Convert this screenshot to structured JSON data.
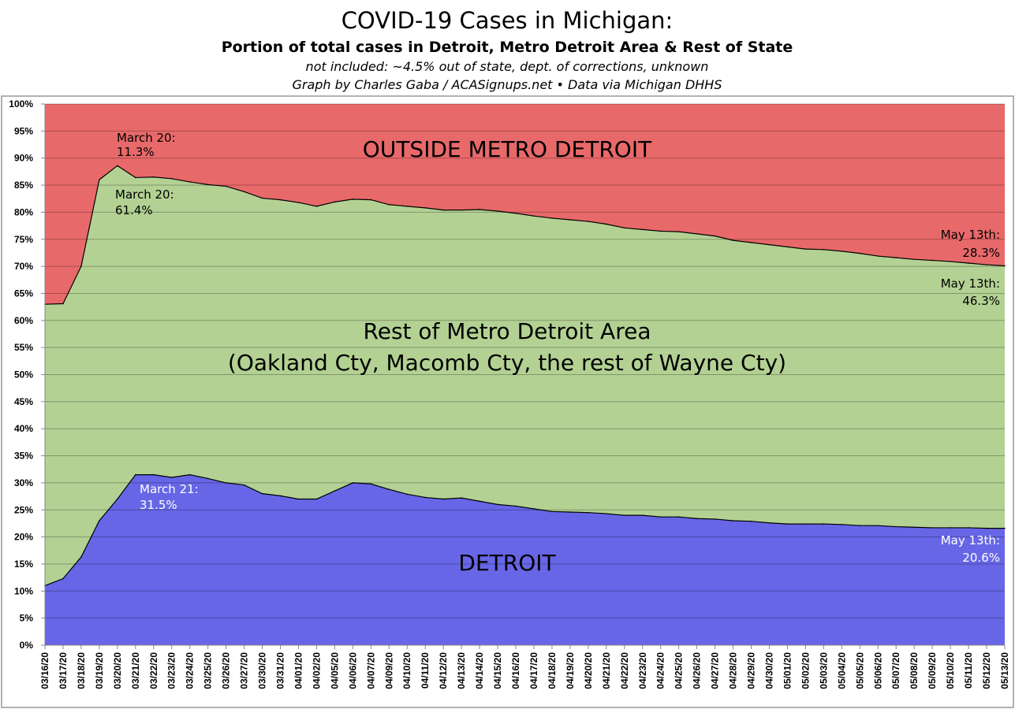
{
  "chart_data": {
    "type": "area",
    "stacked": true,
    "percent_stacked": true,
    "title": "COVID-19 Cases in Michigan:",
    "subtitle": "Portion of total cases in Detroit, Metro Detroit Area & Rest of State",
    "note": "not included: ~4.5% out of state, dept. of corrections, unknown",
    "credit": "Graph by Charles Gaba / ACASignups.net  •  Data via Michigan DHHS",
    "ylim": [
      0,
      100
    ],
    "y_ticks": [
      "0%",
      "5%",
      "10%",
      "15%",
      "20%",
      "25%",
      "30%",
      "35%",
      "40%",
      "45%",
      "50%",
      "55%",
      "60%",
      "65%",
      "70%",
      "75%",
      "80%",
      "85%",
      "90%",
      "95%",
      "100%"
    ],
    "grid": true,
    "categories": [
      "03/16/20",
      "03/17/20",
      "03/18/20",
      "03/19/20",
      "03/20/20",
      "03/21/20",
      "03/22/20",
      "03/23/20",
      "03/24/20",
      "03/25/20",
      "03/26/20",
      "03/27/20",
      "03/30/20",
      "03/31/20",
      "04/01/20",
      "04/02/20",
      "04/05/20",
      "04/06/20",
      "04/07/20",
      "04/09/20",
      "04/10/20",
      "04/11/20",
      "04/12/20",
      "04/13/20",
      "04/14/20",
      "04/15/20",
      "04/16/20",
      "04/17/20",
      "04/18/20",
      "04/19/20",
      "04/20/20",
      "04/21/20",
      "04/22/20",
      "04/23/20",
      "04/24/20",
      "04/25/20",
      "04/26/20",
      "04/27/20",
      "04/28/20",
      "04/29/20",
      "04/30/20",
      "05/01/20",
      "05/02/20",
      "05/03/20",
      "05/04/20",
      "05/05/20",
      "05/06/20",
      "05/07/20",
      "05/08/20",
      "05/09/20",
      "05/10/20",
      "05/11/20",
      "05/12/20",
      "05/13/20"
    ],
    "series": [
      {
        "name": "DETROIT",
        "color": "#6766E6",
        "values": [
          11,
          12.3,
          16.3,
          23,
          27,
          31.5,
          31.5,
          31,
          31.5,
          30.8,
          30,
          29.6,
          28,
          27.6,
          27,
          27,
          28.5,
          30,
          29.8,
          28.8,
          27.9,
          27.3,
          27,
          27.2,
          26.6,
          26,
          25.7,
          25.2,
          24.7,
          24.6,
          24.5,
          24.3,
          24,
          24,
          23.7,
          23.7,
          23.4,
          23.3,
          23,
          22.9,
          22.6,
          22.4,
          22.4,
          22.4,
          22.3,
          22.1,
          22.1,
          21.9,
          21.8,
          21.7,
          21.7,
          21.7,
          21.6,
          21.6
        ]
      },
      {
        "name": "Rest of Metro Detroit Area",
        "color": "#B3D193",
        "values": [
          52,
          50.8,
          53.7,
          63,
          61.6,
          54.9,
          55,
          55.2,
          54.1,
          54.3,
          54.8,
          54.2,
          54.6,
          54.7,
          54.8,
          54.1,
          53.4,
          52.4,
          52.5,
          52.6,
          53.2,
          53.5,
          53.4,
          53.2,
          53.9,
          54.2,
          54.1,
          54.1,
          54.2,
          54,
          53.8,
          53.5,
          53.1,
          52.8,
          52.8,
          52.7,
          52.6,
          52.3,
          51.8,
          51.5,
          51.4,
          51.2,
          50.8,
          50.7,
          50.5,
          50.3,
          49.8,
          49.7,
          49.5,
          49.4,
          49.2,
          48.9,
          48.7,
          48.5
        ]
      },
      {
        "name": "OUTSIDE METRO DETROIT",
        "color": "#E8696A",
        "values": [
          37,
          36.9,
          30,
          14,
          11.4,
          13.6,
          13.5,
          13.8,
          14.4,
          14.9,
          15.2,
          16.2,
          17.4,
          17.7,
          18.2,
          18.9,
          18.1,
          17.6,
          17.7,
          18.6,
          18.9,
          19.2,
          19.6,
          19.6,
          19.5,
          19.8,
          20.2,
          20.7,
          21.1,
          21.4,
          21.7,
          22.2,
          22.9,
          23.2,
          23.5,
          23.6,
          24,
          24.4,
          25.2,
          25.6,
          26,
          26.4,
          26.8,
          26.9,
          27.2,
          27.6,
          28.1,
          28.4,
          28.7,
          28.9,
          29.1,
          29.4,
          29.7,
          29.9
        ]
      }
    ],
    "area_labels": {
      "outside": "OUTSIDE METRO DETROIT",
      "metro_line1": "Rest of Metro Detroit Area",
      "metro_line2": "(Oakland Cty, Macomb Cty, the rest of Wayne Cty)",
      "detroit": "DETROIT"
    },
    "annotations": {
      "outside_peak_1": "March 20:",
      "outside_peak_2": "11.3%",
      "metro_peak_1": "March 20:",
      "metro_peak_2": "61.4%",
      "detroit_peak_1": "March 21:",
      "detroit_peak_2": "31.5%",
      "outside_end_1": "May 13th:",
      "outside_end_2": "28.3%",
      "metro_end_1": "May 13th:",
      "metro_end_2": "46.3%",
      "detroit_end_1": "May 13th:",
      "detroit_end_2": "20.6%"
    }
  }
}
